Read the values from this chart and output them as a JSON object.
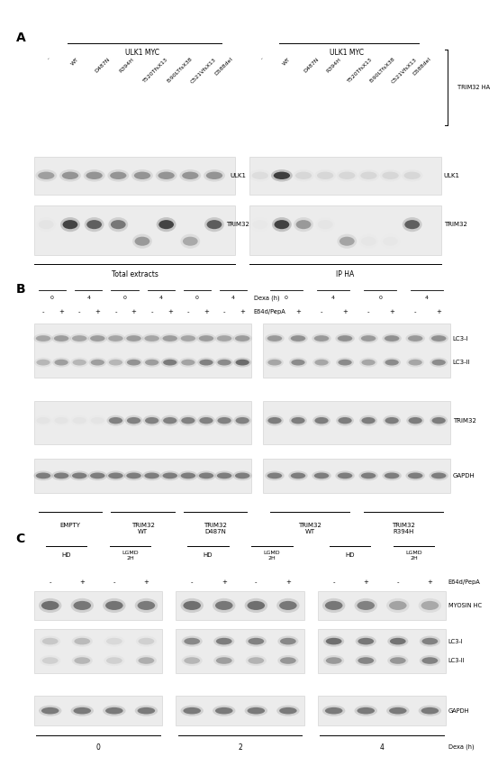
{
  "panel_A": {
    "label": "A",
    "col_labels": [
      "-",
      "WT",
      "D487N",
      "R394H",
      "T520TfsX13",
      "I590LTfsX38",
      "C521VfsX13",
      "D588del"
    ],
    "ulk1_header": "ULK1 MYC",
    "trim32_ha_label": "TRIM32 HA",
    "row_label_ulk1": "ULK1",
    "row_label_trim32": "TRIM32",
    "bottom_left": "Total extracts",
    "bottom_right": "IP HA"
  },
  "panel_B": {
    "label": "B",
    "dexa_pairs": [
      "0",
      "4",
      "0",
      "4",
      "0",
      "4",
      "0",
      "4",
      "0",
      "4"
    ],
    "e64d_left": [
      "-",
      "+",
      "-",
      "+",
      "-",
      "+",
      "-",
      "+",
      "-",
      "+",
      "-",
      "+"
    ],
    "e64d_right": [
      "-",
      "+",
      "-",
      "+",
      "-",
      "+",
      "-",
      "+"
    ],
    "group_labels_left": [
      "EMPTY",
      "TRIM32\nWT",
      "TRIM32\nD487N"
    ],
    "group_labels_right": [
      "TRIM32\nWT",
      "TRIM32\nR394H"
    ],
    "row_labels": [
      "LC3-I",
      "LC3-II",
      "TRIM32",
      "GAPDH"
    ],
    "dexa_axis": "Dexa (h)",
    "e64d_axis": "E64d/PepA"
  },
  "panel_C": {
    "label": "C",
    "dexa_times": [
      "0",
      "2",
      "4"
    ],
    "dexa_axis": "Dexa (h)",
    "e64d_axis": "E64d/PepA",
    "hd_label": "HD",
    "lgmd_label": "LGMD\n2H",
    "row_labels": [
      "MYOSIN HC",
      "LC3-I",
      "LC3-II",
      "GAPDH"
    ]
  },
  "figure_bg": "#ffffff",
  "gel_bg": "#ececec",
  "gel_bg2": "#e5e5e5"
}
